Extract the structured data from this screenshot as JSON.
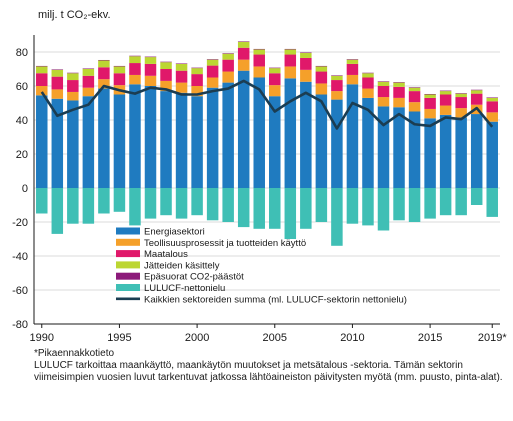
{
  "chart_data": {
    "type": "bar",
    "stacked": true,
    "unit_label": "milj. t CO₂-ekv.",
    "ylim": [
      -80,
      90
    ],
    "yticks": [
      -80,
      -60,
      -40,
      -20,
      0,
      20,
      40,
      60,
      80
    ],
    "x": [
      "1990",
      "1991",
      "1992",
      "1993",
      "1994",
      "1995",
      "1996",
      "1997",
      "1998",
      "1999",
      "2000",
      "2001",
      "2002",
      "2003",
      "2004",
      "2005",
      "2006",
      "2007",
      "2008",
      "2009",
      "2010",
      "2011",
      "2012",
      "2013",
      "2014",
      "2015",
      "2016",
      "2017",
      "2018",
      "2019"
    ],
    "xtick_labels": [
      {
        "year": "1990",
        "label": "1990"
      },
      {
        "year": "1995",
        "label": "1995"
      },
      {
        "year": "2000",
        "label": "2000"
      },
      {
        "year": "2005",
        "label": "2005"
      },
      {
        "year": "2010",
        "label": "2010"
      },
      {
        "year": "2015",
        "label": "2015"
      },
      {
        "year": "2019",
        "label": "2019*"
      }
    ],
    "grid": "horizontal",
    "legend_position": "bottom-left inside plot",
    "series": [
      {
        "name": "Energiasektori",
        "color": "#1f7bc0",
        "values": [
          54.5,
          52.5,
          51.5,
          54,
          58.5,
          55,
          61,
          60,
          57,
          56,
          54,
          59,
          62,
          69,
          65,
          54,
          64.5,
          62.5,
          55,
          52,
          61,
          53,
          48,
          47.5,
          45,
          41,
          43,
          41.5,
          43.5,
          39
        ]
      },
      {
        "name": "Teollisuusprosessit ja tuotteiden käyttö",
        "color": "#f5a02a",
        "values": [
          5.5,
          5.5,
          5,
          5,
          5.5,
          5.5,
          5.5,
          6,
          6,
          6,
          6,
          6,
          6.5,
          6.5,
          6.5,
          6.5,
          7,
          7,
          6.5,
          5,
          5.5,
          5.5,
          5.5,
          5.5,
          5.5,
          5.5,
          5.5,
          5.5,
          5.5,
          5.5
        ]
      },
      {
        "name": "Maatalous",
        "color": "#e0186a",
        "values": [
          7.5,
          7.5,
          7,
          7,
          7,
          7,
          7,
          7,
          7,
          7,
          7,
          7,
          7,
          7,
          7,
          7,
          7,
          7,
          7,
          6.5,
          6.5,
          6.5,
          6.5,
          6.5,
          6.5,
          6.5,
          6.5,
          6.5,
          6.5,
          6.5
        ]
      },
      {
        "name": "Jätteiden käsittely",
        "color": "#bcd632",
        "values": [
          4,
          4,
          4,
          4,
          4,
          4,
          4,
          4,
          4,
          4,
          3.5,
          3.5,
          3.5,
          3.5,
          3,
          3,
          3,
          3,
          3,
          2.5,
          2.5,
          2.5,
          2.5,
          2.5,
          2,
          2,
          2,
          2,
          2,
          2
        ]
      },
      {
        "name": "Epäsuorat CO2-päästöt",
        "color": "#8c1a7a",
        "values": [
          0.3,
          0.3,
          0.3,
          0.3,
          0.3,
          0.3,
          0.3,
          0.3,
          0.3,
          0.3,
          0.3,
          0.3,
          0.3,
          0.3,
          0.3,
          0.3,
          0.3,
          0.3,
          0.3,
          0.3,
          0.3,
          0.3,
          0.3,
          0.3,
          0.3,
          0.3,
          0.3,
          0.3,
          0.3,
          0.3
        ]
      },
      {
        "name": "LULUCF-nettonielu",
        "color": "#3fbfb5",
        "values": [
          -15,
          -27,
          -21,
          -21,
          -15,
          -14,
          -22,
          -18,
          -16,
          -18,
          -16,
          -19,
          -20,
          -23,
          -24,
          -24,
          -30,
          -24,
          -20,
          -34,
          -21,
          -22,
          -25,
          -19,
          -20,
          -18,
          -16,
          -16,
          -10,
          -17
        ]
      }
    ],
    "line_series": {
      "name": "Kaikkien sektoreiden summa (ml. LULUCF-sektorin nettonielu)",
      "color": "#1b3d52",
      "values": [
        56.5,
        42.5,
        46,
        49,
        60,
        57.5,
        55.5,
        59,
        58,
        55,
        55,
        57,
        58.5,
        63,
        58,
        45,
        51,
        56,
        51,
        35,
        50,
        46,
        37,
        43.5,
        37.5,
        36.5,
        41.5,
        40.5,
        47,
        36
      ]
    }
  },
  "notes": {
    "line1": "*Pikaennakkotieto",
    "line2": "LULUCF tarkoittaa maankäyttö, maankäytön muutokset ja metsätalous -sektoria. Tämän sektorin viimeisimpien  vuosien luvut tarkentuvat jatkossa lähtöaineiston päivitysten myötä (mm.  puusto, pinta-alat)."
  }
}
